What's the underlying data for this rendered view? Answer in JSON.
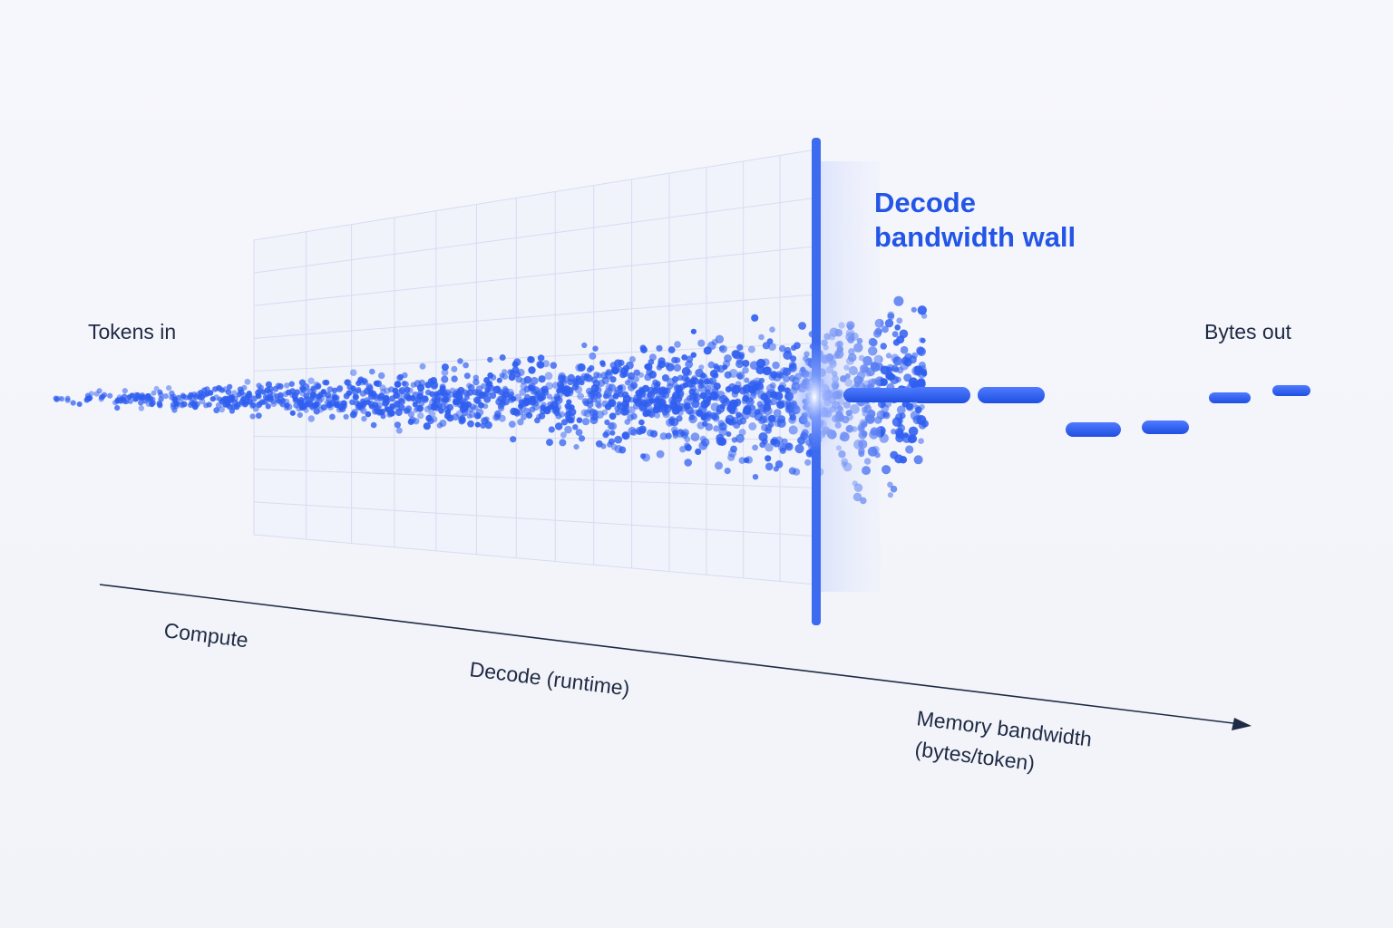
{
  "labels": {
    "tokens_in": "Tokens in",
    "bytes_out": "Bytes out"
  },
  "wall_title": [
    "Decode",
    "bandwidth wall"
  ],
  "axis": {
    "labels": [
      "Compute",
      "Decode (runtime)"
    ],
    "title": [
      "Memory bandwidth",
      "(bytes/token)"
    ]
  }
}
